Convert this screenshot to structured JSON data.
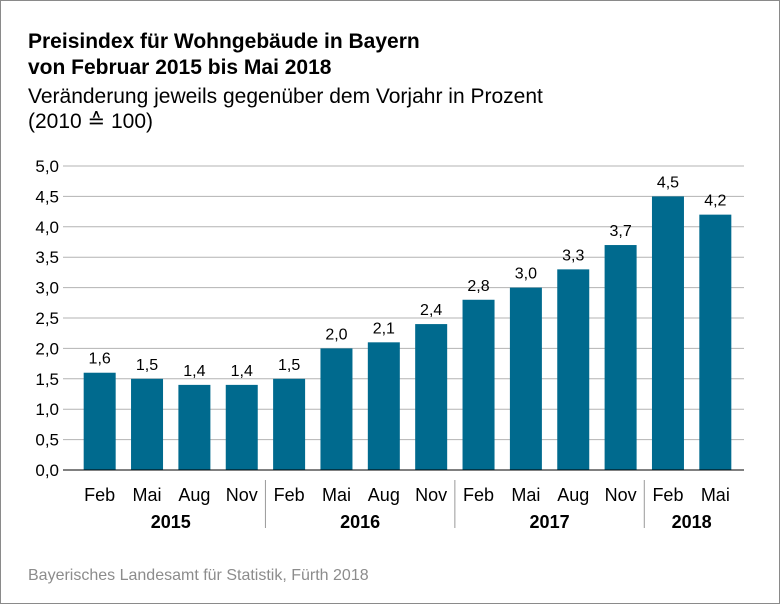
{
  "header": {
    "title_line1": "Preisindex für Wohngebäude in Bayern",
    "title_line2": "von Februar 2015 bis Mai 2018",
    "subtitle_line1": "Veränderung jeweils gegenüber dem Vorjahr in Prozent",
    "subtitle_line2": "(2010 ≙ 100)"
  },
  "source": "Bayerisches Landesamt für Statistik, Fürth 2018",
  "chart_data": {
    "type": "bar",
    "title": "Preisindex für Wohngebäude in Bayern von Februar 2015 bis Mai 2018",
    "ylabel": "",
    "xlabel": "",
    "ylim": [
      0,
      5
    ],
    "yticks": [
      "0,0",
      "0,5",
      "1,0",
      "1,5",
      "2,0",
      "2,5",
      "3,0",
      "3,5",
      "4,0",
      "4,5",
      "5,0"
    ],
    "grid": true,
    "bar_color": "#006a8e",
    "categories": [
      "Feb",
      "Mai",
      "Aug",
      "Nov",
      "Feb",
      "Mai",
      "Aug",
      "Nov",
      "Feb",
      "Mai",
      "Aug",
      "Nov",
      "Feb",
      "Mai"
    ],
    "values": [
      1.6,
      1.5,
      1.4,
      1.4,
      1.5,
      2.0,
      2.1,
      2.4,
      2.8,
      3.0,
      3.3,
      3.7,
      4.5,
      4.2
    ],
    "value_labels": [
      "1,6",
      "1,5",
      "1,4",
      "1,4",
      "1,5",
      "2,0",
      "2,1",
      "2,4",
      "2,8",
      "3,0",
      "3,3",
      "3,7",
      "4,5",
      "4,2"
    ],
    "groups": [
      {
        "label": "2015",
        "count": 4
      },
      {
        "label": "2016",
        "count": 4
      },
      {
        "label": "2017",
        "count": 4
      },
      {
        "label": "2018",
        "count": 2
      }
    ]
  }
}
